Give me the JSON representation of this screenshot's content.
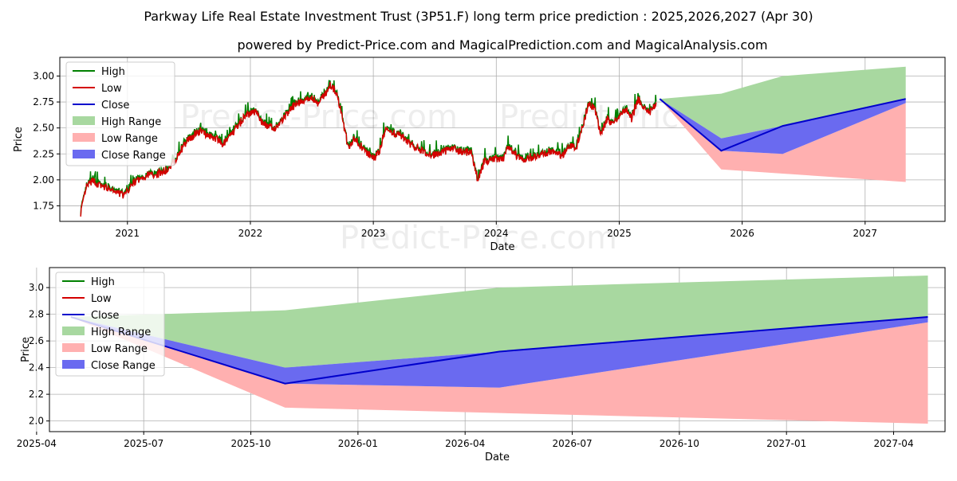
{
  "title": "Parkway Life Real Estate Investment Trust (3P51.F) long term price prediction : 2025,2026,2027 (Apr 30)",
  "subtitle": "powered by Predict-Price.com and MagicalPrediction.com and MagicalAnalysis.com",
  "watermark": "Predict-Price.com",
  "colors": {
    "high": "#008000",
    "low": "#d40000",
    "close": "#0000cc",
    "high_range": "#a8d8a0",
    "low_range": "#ffb0b0",
    "close_range": "#6a6af0",
    "grid": "#b0b0b0"
  },
  "chart_data": [
    {
      "type": "line",
      "name": "history-and-forecast",
      "xlabel": "Date",
      "ylabel": "Price",
      "xlim": [
        2020.45,
        2027.65
      ],
      "ylim": [
        1.6,
        3.18
      ],
      "x_ticks": [
        2021,
        2022,
        2023,
        2024,
        2025,
        2026,
        2027
      ],
      "x_tick_labels": [
        "2021",
        "2022",
        "2023",
        "2024",
        "2025",
        "2026",
        "2027"
      ],
      "y_ticks": [
        1.75,
        2.0,
        2.25,
        2.5,
        2.75,
        3.0
      ],
      "y_tick_labels": [
        "1.75",
        "2.00",
        "2.25",
        "2.50",
        "2.75",
        "3.00"
      ],
      "grid": true,
      "legend_position": "top-left",
      "legend": [
        "High",
        "Low",
        "Close",
        "High Range",
        "Low Range",
        "Close Range"
      ],
      "history_anchors": {
        "x": [
          2020.62,
          2020.67,
          2020.72,
          2020.78,
          2020.85,
          2020.92,
          2020.98,
          2021.05,
          2021.15,
          2021.25,
          2021.32,
          2021.4,
          2021.48,
          2021.55,
          2021.6,
          2021.7,
          2021.78,
          2021.85,
          2021.95,
          2022.05,
          2022.1,
          2022.2,
          2022.28,
          2022.35,
          2022.4,
          2022.45,
          2022.5,
          2022.55,
          2022.6,
          2022.65,
          2022.7,
          2022.75,
          2022.8,
          2022.85,
          2022.92,
          2023.0,
          2023.05,
          2023.1,
          2023.2,
          2023.3,
          2023.4,
          2023.5,
          2023.6,
          2023.65,
          2023.7,
          2023.8,
          2023.85,
          2023.9,
          2024.0,
          2024.05,
          2024.1,
          2024.2,
          2024.35,
          2024.45,
          2024.55,
          2024.6,
          2024.65,
          2024.7,
          2024.75,
          2024.8,
          2024.85,
          2024.9,
          2024.95,
          2025.0,
          2025.05,
          2025.1,
          2025.15,
          2025.2,
          2025.25,
          2025.3
        ],
        "close": [
          1.7,
          1.95,
          2.0,
          1.95,
          1.92,
          1.88,
          1.86,
          1.98,
          2.05,
          2.07,
          2.1,
          2.22,
          2.38,
          2.45,
          2.48,
          2.42,
          2.35,
          2.45,
          2.62,
          2.68,
          2.55,
          2.5,
          2.62,
          2.72,
          2.76,
          2.78,
          2.8,
          2.75,
          2.82,
          2.92,
          2.85,
          2.6,
          2.3,
          2.42,
          2.3,
          2.22,
          2.28,
          2.5,
          2.45,
          2.35,
          2.28,
          2.25,
          2.3,
          2.32,
          2.28,
          2.27,
          2.0,
          2.18,
          2.22,
          2.2,
          2.33,
          2.2,
          2.25,
          2.28,
          2.25,
          2.35,
          2.32,
          2.52,
          2.75,
          2.7,
          2.45,
          2.6,
          2.55,
          2.62,
          2.7,
          2.6,
          2.78,
          2.72,
          2.65,
          2.75
        ]
      },
      "forecast": {
        "x": [
          2025.33,
          2025.83,
          2026.33,
          2027.33
        ],
        "close": [
          2.78,
          2.28,
          2.52,
          2.78
        ],
        "high_range_upper": [
          2.78,
          2.83,
          3.0,
          3.09
        ],
        "high_range_lower": [
          2.78,
          2.4,
          2.52,
          2.78
        ],
        "low_range_upper": [
          2.78,
          2.28,
          2.25,
          2.74
        ],
        "low_range_lower": [
          2.78,
          2.1,
          2.06,
          1.98
        ],
        "close_range_upper": [
          2.78,
          2.4,
          2.52,
          2.78
        ],
        "close_range_lower": [
          2.78,
          2.28,
          2.25,
          2.74
        ]
      }
    },
    {
      "type": "line",
      "name": "forecast-zoom",
      "xlabel": "Date",
      "ylabel": "Price",
      "xlim": [
        2025.28,
        2027.37
      ],
      "ylim": [
        1.92,
        3.15
      ],
      "x_ticks": [
        2025.25,
        2025.5,
        2025.75,
        2026.0,
        2026.25,
        2026.5,
        2026.75,
        2027.0,
        2027.25
      ],
      "x_tick_labels": [
        "2025-04",
        "2025-07",
        "2025-10",
        "2026-01",
        "2026-04",
        "2026-07",
        "2026-10",
        "2027-01",
        "2027-04"
      ],
      "y_ticks": [
        2.0,
        2.2,
        2.4,
        2.6,
        2.8,
        3.0
      ],
      "y_tick_labels": [
        "2.0",
        "2.2",
        "2.4",
        "2.6",
        "2.8",
        "3.0"
      ],
      "grid": true,
      "legend_position": "top-left",
      "legend": [
        "High",
        "Low",
        "Close",
        "High Range",
        "Low Range",
        "Close Range"
      ],
      "forecast": {
        "x": [
          2025.33,
          2025.83,
          2026.33,
          2027.33
        ],
        "close": [
          2.78,
          2.28,
          2.52,
          2.78
        ],
        "high_range_upper": [
          2.78,
          2.83,
          3.0,
          3.09
        ],
        "high_range_lower": [
          2.78,
          2.4,
          2.52,
          2.78
        ],
        "low_range_upper": [
          2.78,
          2.28,
          2.25,
          2.74
        ],
        "low_range_lower": [
          2.78,
          2.1,
          2.06,
          1.98
        ],
        "close_range_upper": [
          2.78,
          2.4,
          2.52,
          2.78
        ],
        "close_range_lower": [
          2.78,
          2.28,
          2.25,
          2.74
        ]
      }
    }
  ]
}
